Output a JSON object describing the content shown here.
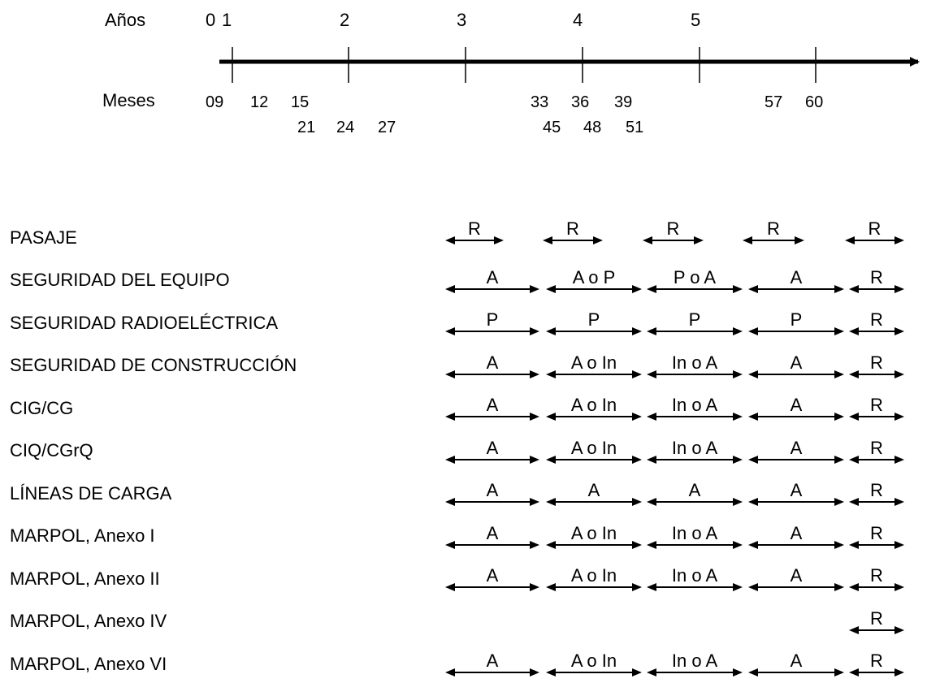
{
  "timeline": {
    "years_label": "Años",
    "months_label": "Meses",
    "years": [
      "0",
      "1",
      "2",
      "3",
      "4",
      "5"
    ],
    "months_row1": [
      "09",
      "12",
      "15",
      "33",
      "36",
      "39",
      "57",
      "60"
    ],
    "months_row2": [
      "21",
      "24",
      "27",
      "45",
      "48",
      "51"
    ]
  },
  "schedule": {
    "rows": [
      {
        "label": "PASAJE",
        "cells": [
          "R",
          "R",
          "R",
          "R",
          "R"
        ]
      },
      {
        "label": "SEGURIDAD DEL EQUIPO",
        "cells": [
          "A",
          "A o P",
          "P o A",
          "A",
          "R"
        ]
      },
      {
        "label": "SEGURIDAD RADIOELÉCTRICA",
        "cells": [
          "P",
          "P",
          "P",
          "P",
          "R"
        ]
      },
      {
        "label": "SEGURIDAD DE CONSTRUCCIÓN",
        "cells": [
          "A",
          "A o In",
          "In o A",
          "A",
          "R"
        ]
      },
      {
        "label": "CIG/CG",
        "cells": [
          "A",
          "A o In",
          "In o A",
          "A",
          "R"
        ]
      },
      {
        "label": "CIQ/CGrQ",
        "cells": [
          "A",
          "A o In",
          "In o A",
          "A",
          "R"
        ]
      },
      {
        "label": "LÍNEAS DE CARGA",
        "cells": [
          "A",
          "A",
          "A",
          "A",
          "R"
        ]
      },
      {
        "label": "MARPOL, Anexo I",
        "cells": [
          "A",
          "A o In",
          "In o A",
          "A",
          "R"
        ]
      },
      {
        "label": "MARPOL, Anexo II",
        "cells": [
          "A",
          "A o In",
          "In o A",
          "A",
          "R"
        ]
      },
      {
        "label": "MARPOL, Anexo IV",
        "cells": [
          "",
          "",
          "",
          "",
          "R"
        ]
      },
      {
        "label": "MARPOL, Anexo VI",
        "cells": [
          "A",
          "A o In",
          "In o A",
          "A",
          "R"
        ]
      }
    ]
  }
}
